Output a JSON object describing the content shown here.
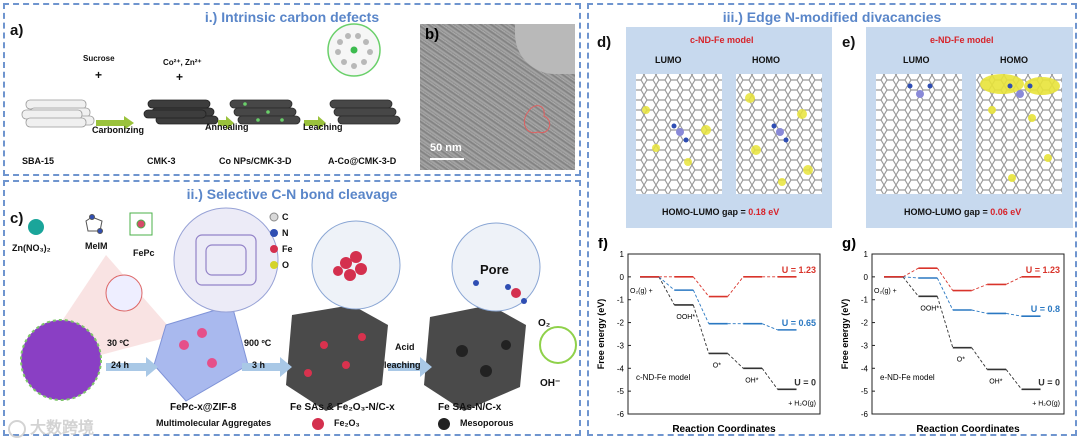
{
  "section_i": {
    "title": "i.) Intrinsic carbon defects"
  },
  "section_ii": {
    "title": "ii.) Selective C-N bond cleavage"
  },
  "section_iii": {
    "title": "iii.) Edge N-modified divacancies"
  },
  "panel_a": {
    "label": "a)",
    "sucrose": "Sucrose",
    "plus": "+",
    "co_zn": "Co²⁺, Zn²⁺",
    "step1": "Carbonizing",
    "step2": "Annealing",
    "step3": "Leaching",
    "m1": "SBA-15",
    "m2": "CMK-3",
    "m3": "Co NPs/CMK-3-D",
    "m4": "A-Co@CMK-3-D"
  },
  "panel_b": {
    "label": "b)",
    "scale": "50 nm"
  },
  "panel_c": {
    "label": "c)",
    "zn": "Zn(NO₃)₂",
    "melm": "MeIM",
    "fepc": "FePc",
    "legend_c": "C",
    "legend_n": "N",
    "legend_fe": "Fe",
    "legend_o": "O",
    "cond1a": "30 ºC",
    "cond1b": "24 h",
    "cond2a": "900 ºC",
    "cond2b": "3 h",
    "acid": "Acid",
    "leaching": "leaching",
    "pore": "Pore",
    "o2": "O₂",
    "oh": "OH⁻",
    "p1": "FePc-x@ZIF-8",
    "p2": "Fe SAs & Fe₂O₃-N/C-x",
    "p3": "Fe SAs-N/C-x",
    "agg": "Multimolecular Aggregates",
    "fe2o3": "Fe₂O₃",
    "meso": "Mesoporous"
  },
  "panel_d": {
    "label": "d)",
    "model": "c-ND-Fe model",
    "lumo": "LUMO",
    "homo": "HOMO",
    "gap_text": "HOMO-LUMO gap = ",
    "gap_value": "0.18 eV"
  },
  "panel_e": {
    "label": "e)",
    "model": "e-ND-Fe model",
    "lumo": "LUMO",
    "homo": "HOMO",
    "gap_text": "HOMO-LUMO gap = ",
    "gap_value": "0.06 eV"
  },
  "chart_data": [
    {
      "type": "line",
      "label": "f)",
      "model": "c-ND-Fe model",
      "xlabel": "Reaction Coordinates",
      "ylabel": "Free energy (eV)",
      "ylim": [
        -6,
        1
      ],
      "yticks": [
        1,
        0,
        -1,
        -2,
        -3,
        -4,
        -5,
        -6
      ],
      "steps": [
        "O₂(g)",
        "OOH*",
        "O*",
        "OH*",
        "H₂O(g)"
      ],
      "step_labels": {
        "o2": "O₂(g) +",
        "ooh": "OOH*",
        "o": "O*",
        "oh": "OH*",
        "h2o": "+ H₂O(g)"
      },
      "series": [
        {
          "name": "U = 0",
          "color": "#333333",
          "values": [
            0,
            -1.23,
            -3.35,
            -4.0,
            -4.92
          ]
        },
        {
          "name": "U = 0.65",
          "color": "#2a78c2",
          "values": [
            0,
            -0.58,
            -2.05,
            -2.05,
            -2.32
          ]
        },
        {
          "name": "U = 1.23",
          "color": "#d9342b",
          "values": [
            0,
            0.0,
            -0.86,
            0.0,
            0.0
          ]
        }
      ]
    },
    {
      "type": "line",
      "label": "g)",
      "model": "e-ND-Fe model",
      "xlabel": "Reaction Coordinates",
      "ylabel": "Free energy (eV)",
      "ylim": [
        -6,
        1
      ],
      "yticks": [
        1,
        0,
        -1,
        -2,
        -3,
        -4,
        -5,
        -6
      ],
      "steps": [
        "O₂(g)",
        "OOH*",
        "O*",
        "OH*",
        "H₂O(g)"
      ],
      "step_labels": {
        "o2": "O₂(g) +",
        "ooh": "OOH*",
        "o": "O*",
        "oh": "OH*",
        "h2o": "+ H₂O(g)"
      },
      "series": [
        {
          "name": "U = 0",
          "color": "#333333",
          "values": [
            0,
            -0.85,
            -3.1,
            -4.05,
            -4.92
          ]
        },
        {
          "name": "U = 0.8",
          "color": "#2a78c2",
          "values": [
            0,
            -0.05,
            -1.45,
            -1.6,
            -1.72
          ]
        },
        {
          "name": "U = 1.23",
          "color": "#d9342b",
          "values": [
            0,
            0.38,
            -0.6,
            -0.33,
            0.0
          ]
        }
      ]
    }
  ],
  "watermark": "大数跨境"
}
